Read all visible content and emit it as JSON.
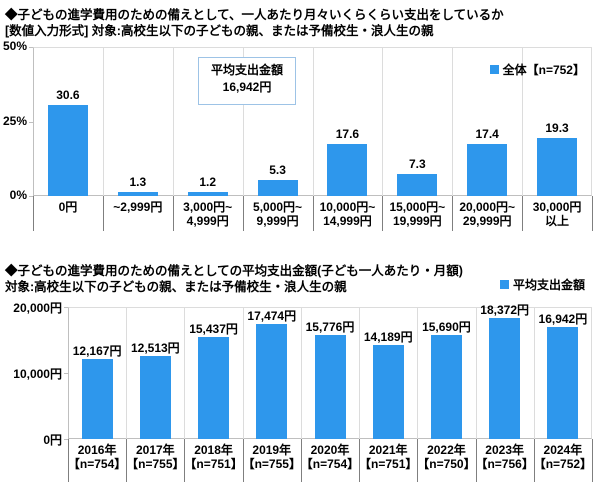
{
  "colors": {
    "bar": "#2E97EC",
    "grid": "#DCDCDC",
    "axis": "#BFBFBF",
    "separator": "#7F7F7F",
    "annotation_border": "#9DC3E6",
    "text": "#000000",
    "background": "#FFFFFF"
  },
  "chart_data": [
    {
      "type": "bar",
      "title": "◆子どもの進学費用のための備えとして、一人あたり月々いくらくらい支出をしているか",
      "subtitle": "[数値入力形式] 対象:高校生以下の子どもの親、または予備校生・浪人生の親",
      "legend": {
        "label": "全体【n=752】",
        "position": "top-right-inside"
      },
      "annotation_box": {
        "lines": [
          "平均支出金額",
          "16,942円"
        ]
      },
      "categories": [
        [
          "0円"
        ],
        [
          "~2,999円"
        ],
        [
          "3,000円~",
          "4,999円"
        ],
        [
          "5,000円~",
          "9,999円"
        ],
        [
          "10,000円~",
          "14,999円"
        ],
        [
          "15,000円~",
          "19,999円"
        ],
        [
          "20,000円~",
          "29,999円"
        ],
        [
          "30,000円",
          "以上"
        ]
      ],
      "values": [
        30.6,
        1.3,
        1.2,
        5.3,
        17.6,
        7.3,
        17.4,
        19.3
      ],
      "value_labels": [
        "30.6",
        "1.3",
        "1.2",
        "5.3",
        "17.6",
        "7.3",
        "17.4",
        "19.3"
      ],
      "unit": "%",
      "ylim": [
        0,
        50
      ],
      "yticks": [
        {
          "value": 0,
          "label": "0%"
        },
        {
          "value": 25,
          "label": "25%"
        },
        {
          "value": 50,
          "label": "50%"
        }
      ],
      "grid": "vertical category separators only",
      "xlabel": "",
      "ylabel": ""
    },
    {
      "type": "bar",
      "title": "◆子どもの進学費用のための備えとしての平均支出金額(子ども一人あたり・月額)",
      "subtitle": "対象:高校生以下の子どもの親、または予備校生・浪人生の親",
      "legend": {
        "label": "平均支出金額",
        "position": "top-right-outside"
      },
      "categories": [
        [
          "2016年",
          "【n=754】"
        ],
        [
          "2017年",
          "【n=755】"
        ],
        [
          "2018年",
          "【n=751】"
        ],
        [
          "2019年",
          "【n=755】"
        ],
        [
          "2020年",
          "【n=754】"
        ],
        [
          "2021年",
          "【n=751】"
        ],
        [
          "2022年",
          "【n=750】"
        ],
        [
          "2023年",
          "【n=756】"
        ],
        [
          "2024年",
          "【n=752】"
        ]
      ],
      "values": [
        12167,
        12513,
        15437,
        17474,
        15776,
        14189,
        15690,
        18372,
        16942
      ],
      "value_labels": [
        "12,167円",
        "12,513円",
        "15,437円",
        "17,474円",
        "15,776円",
        "14,189円",
        "15,690円",
        "18,372円",
        "16,942円"
      ],
      "unit": "円",
      "ylim": [
        0,
        20000
      ],
      "yticks": [
        {
          "value": 0,
          "label": "0円"
        },
        {
          "value": 10000,
          "label": "10,000円"
        },
        {
          "value": 20000,
          "label": "20,000円"
        }
      ],
      "grid": "vertical category separators only",
      "xlabel": "",
      "ylabel": ""
    }
  ]
}
